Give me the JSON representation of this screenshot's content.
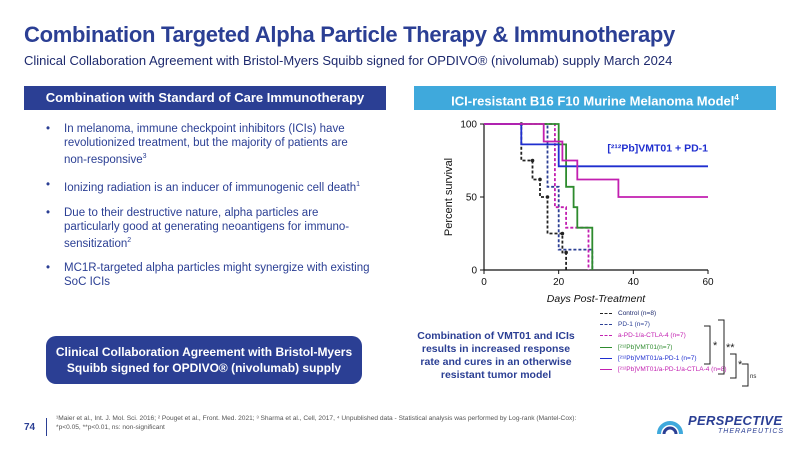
{
  "slide": {
    "title": "Combination Targeted Alpha Particle Therapy & Immunotherapy",
    "subtitle": "Clinical Collaboration Agreement with Bristol-Myers Squibb signed for OPDIVO® (nivolumab) supply March 2024",
    "page_number": "74"
  },
  "left_panel": {
    "header": "Combination with Standard of Care Immunotherapy",
    "bullets": [
      {
        "text": "In melanoma, immune checkpoint inhibitors (ICIs) have revolutionized treatment, but the majority of patients are non-responsive",
        "ref": "3"
      },
      {
        "text": "Ionizing radiation is an inducer of immunogenic cell death",
        "ref": "1"
      },
      {
        "text": "Due to their destructive nature, alpha particles are particularly good at generating neoantigens for immuno-sensitization",
        "ref": "2"
      },
      {
        "text": "MC1R-targeted alpha particles might synergize with existing SoC ICIs",
        "ref": ""
      }
    ],
    "collab_line1": "Clinical Collaboration Agreement with Bristol-Myers",
    "collab_line2": "Squibb signed for OPDIVO® (nivolumab) supply"
  },
  "right_panel": {
    "header": "ICI-resistant B16 F10 Murine Melanoma Model",
    "header_ref": "4",
    "combo_note": "Combination of VMT01 and ICIs results in increased response rate and cures in an otherwise resistant tumor model",
    "significance": {
      "s1": "*",
      "s2": "**",
      "s3": "*",
      "s4": "ns"
    }
  },
  "chart_data": {
    "type": "line",
    "subtype": "kaplan-meier step",
    "ylabel": "Percent survival",
    "xlabel": "Days Post-Treatment",
    "xlim": [
      0,
      60
    ],
    "ylim": [
      0,
      100
    ],
    "x_ticks": [
      0,
      20,
      40,
      60
    ],
    "y_ticks": [
      0,
      50,
      100
    ],
    "annotation": "[²¹²Pb]VMT01 + PD-1",
    "series": [
      {
        "name": "Control (n=8)",
        "color": "#222222",
        "dash": "3,2",
        "markers": true,
        "steps": [
          [
            0,
            100
          ],
          [
            10,
            100
          ],
          [
            10,
            75
          ],
          [
            13,
            75
          ],
          [
            13,
            62
          ],
          [
            15,
            62
          ],
          [
            15,
            50
          ],
          [
            17,
            50
          ],
          [
            17,
            25
          ],
          [
            21,
            25
          ],
          [
            21,
            12
          ],
          [
            22,
            12
          ],
          [
            22,
            0
          ]
        ]
      },
      {
        "name": "PD-1 (n=7)",
        "color": "#2b3f94",
        "dash": "3,2",
        "markers": false,
        "steps": [
          [
            0,
            100
          ],
          [
            17,
            100
          ],
          [
            17,
            57
          ],
          [
            20,
            57
          ],
          [
            20,
            14
          ],
          [
            23,
            14
          ],
          [
            23,
            14
          ],
          [
            29,
            14
          ],
          [
            29,
            0
          ]
        ]
      },
      {
        "name": "a-PD-1/a-CTLA-4 (n=7)",
        "color": "#c21fb0",
        "dash": "3,2",
        "markers": false,
        "steps": [
          [
            0,
            100
          ],
          [
            19,
            100
          ],
          [
            19,
            43
          ],
          [
            22,
            43
          ],
          [
            22,
            29
          ],
          [
            28,
            29
          ],
          [
            28,
            0
          ]
        ]
      },
      {
        "name": "[²¹²Pb]VMT01(n=7)",
        "color": "#2e8b2e",
        "dash": "",
        "markers": false,
        "steps": [
          [
            0,
            100
          ],
          [
            20,
            100
          ],
          [
            20,
            86
          ],
          [
            22,
            86
          ],
          [
            22,
            57
          ],
          [
            24,
            57
          ],
          [
            24,
            43
          ],
          [
            25,
            43
          ],
          [
            25,
            29
          ],
          [
            29,
            29
          ],
          [
            29,
            0
          ]
        ]
      },
      {
        "name": "[²¹²Pb]VMT01/a-PD-1 (n=7)",
        "color": "#1f2ecf",
        "dash": "",
        "markers": false,
        "steps": [
          [
            0,
            100
          ],
          [
            10,
            100
          ],
          [
            10,
            86
          ],
          [
            20,
            86
          ],
          [
            20,
            71
          ],
          [
            60,
            71
          ]
        ]
      },
      {
        "name": "[²¹²Pb]VMT01/a-PD-1/a-CTLA-4 (n=8)",
        "color": "#c21fb0",
        "dash": "",
        "markers": false,
        "steps": [
          [
            0,
            100
          ],
          [
            16,
            100
          ],
          [
            16,
            88
          ],
          [
            21,
            88
          ],
          [
            21,
            75
          ],
          [
            25,
            75
          ],
          [
            25,
            62
          ],
          [
            36,
            62
          ],
          [
            36,
            50
          ],
          [
            60,
            50
          ]
        ]
      }
    ]
  },
  "footnote": {
    "line1": "¹Maier et al., Int. J. Mol. Sci. 2016; ² Pouget et al., Front. Med. 2021; ³ Sharma et al., Cell, 2017, ⁴ Unpublished data - Statistical analysis was performed by Log-rank (Mantel-Cox):",
    "line2": "*p<0.05, **p<0.01, ns: non-significant"
  },
  "logo": {
    "name": "PERSPECTIVE",
    "sub": "THERAPEUTICS",
    "brand_color": "#2b3f94",
    "accent_color": "#3fa9dc"
  }
}
